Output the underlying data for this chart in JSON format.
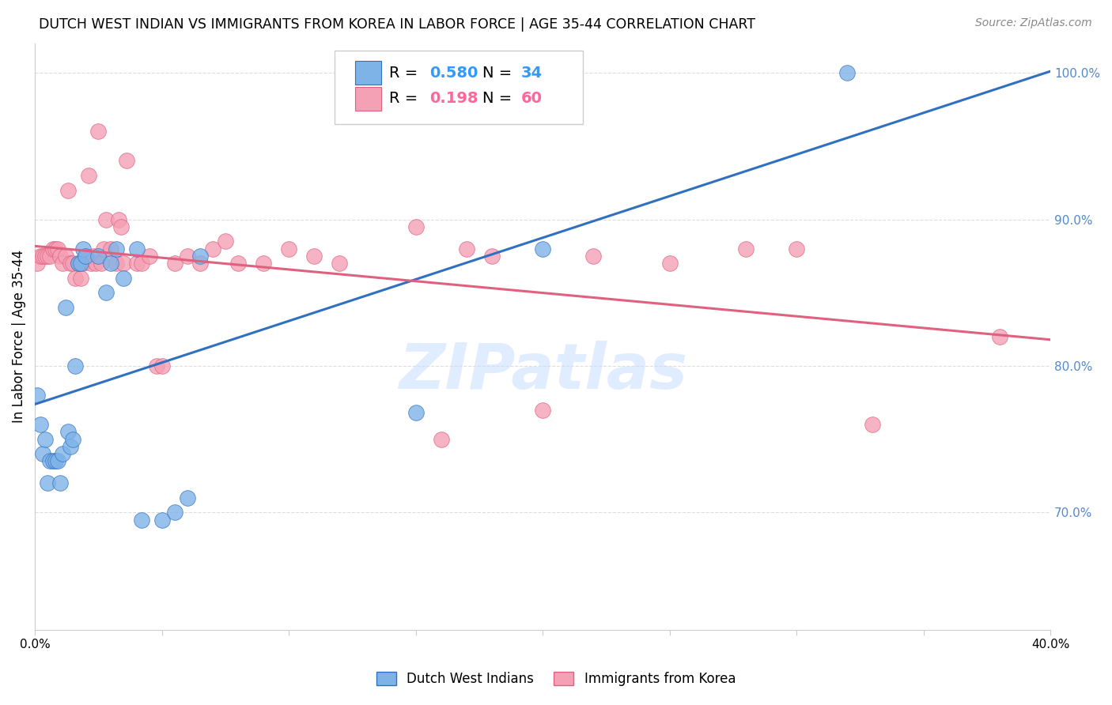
{
  "title": "DUTCH WEST INDIAN VS IMMIGRANTS FROM KOREA IN LABOR FORCE | AGE 35-44 CORRELATION CHART",
  "source": "Source: ZipAtlas.com",
  "ylabel": "In Labor Force | Age 35-44",
  "right_yticks": [
    70.0,
    80.0,
    90.0,
    100.0
  ],
  "xlim": [
    0.0,
    0.4
  ],
  "ylim": [
    0.62,
    1.02
  ],
  "blue_scatter_x": [
    0.001,
    0.002,
    0.003,
    0.004,
    0.005,
    0.006,
    0.007,
    0.008,
    0.009,
    0.01,
    0.011,
    0.012,
    0.013,
    0.014,
    0.015,
    0.016,
    0.017,
    0.018,
    0.019,
    0.02,
    0.025,
    0.028,
    0.03,
    0.032,
    0.035,
    0.04,
    0.042,
    0.05,
    0.055,
    0.06,
    0.065,
    0.15,
    0.2,
    0.32
  ],
  "blue_scatter_y": [
    0.78,
    0.76,
    0.74,
    0.75,
    0.72,
    0.735,
    0.735,
    0.735,
    0.735,
    0.72,
    0.74,
    0.84,
    0.755,
    0.745,
    0.75,
    0.8,
    0.87,
    0.87,
    0.88,
    0.875,
    0.875,
    0.85,
    0.87,
    0.88,
    0.86,
    0.88,
    0.695,
    0.695,
    0.7,
    0.71,
    0.875,
    0.768,
    0.88,
    1.0
  ],
  "pink_scatter_x": [
    0.001,
    0.002,
    0.003,
    0.004,
    0.005,
    0.006,
    0.007,
    0.008,
    0.009,
    0.01,
    0.011,
    0.012,
    0.013,
    0.014,
    0.015,
    0.016,
    0.017,
    0.018,
    0.019,
    0.02,
    0.021,
    0.022,
    0.023,
    0.024,
    0.025,
    0.026,
    0.027,
    0.028,
    0.03,
    0.032,
    0.033,
    0.034,
    0.035,
    0.036,
    0.04,
    0.042,
    0.045,
    0.048,
    0.05,
    0.055,
    0.06,
    0.065,
    0.07,
    0.075,
    0.08,
    0.09,
    0.1,
    0.11,
    0.12,
    0.15,
    0.16,
    0.17,
    0.18,
    0.2,
    0.22,
    0.25,
    0.28,
    0.3,
    0.33,
    0.38
  ],
  "pink_scatter_y": [
    0.87,
    0.875,
    0.875,
    0.875,
    0.875,
    0.875,
    0.88,
    0.88,
    0.88,
    0.875,
    0.87,
    0.875,
    0.92,
    0.87,
    0.87,
    0.86,
    0.87,
    0.86,
    0.87,
    0.875,
    0.93,
    0.87,
    0.875,
    0.87,
    0.96,
    0.87,
    0.88,
    0.9,
    0.88,
    0.87,
    0.9,
    0.895,
    0.87,
    0.94,
    0.87,
    0.87,
    0.875,
    0.8,
    0.8,
    0.87,
    0.875,
    0.87,
    0.88,
    0.885,
    0.87,
    0.87,
    0.88,
    0.875,
    0.87,
    0.895,
    0.75,
    0.88,
    0.875,
    0.77,
    0.875,
    0.87,
    0.88,
    0.88,
    0.76,
    0.82
  ],
  "blue_R": 0.58,
  "blue_N": 34,
  "pink_R": 0.198,
  "pink_N": 60,
  "blue_color": "#7EB3E8",
  "pink_color": "#F4A0B5",
  "blue_line_color": "#3070C0",
  "pink_line_color": "#E06080",
  "legend_R_blue": "#3399FF",
  "legend_N_blue": "#3399FF",
  "legend_R_pink": "#FF6699",
  "legend_N_pink": "#FF6699",
  "watermark": "ZIPatlas",
  "background_color": "#FFFFFF",
  "grid_color": "#DDDDDD"
}
